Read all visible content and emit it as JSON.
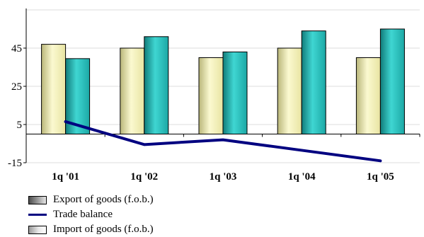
{
  "chart_data": {
    "type": "bar",
    "categories": [
      "1q '01",
      "1q '02",
      "1q '03",
      "1q '04",
      "1q '05"
    ],
    "series": [
      {
        "name": "Import of goods (f.o.b.)",
        "type": "bar",
        "color": "#f4f1b8",
        "values": [
          47,
          45,
          40,
          45,
          40
        ]
      },
      {
        "name": "Export of goods (f.o.b.)",
        "type": "bar",
        "color": "#2ec4c0",
        "values": [
          39.5,
          51,
          43,
          54,
          55
        ]
      },
      {
        "name": "Trade balance",
        "type": "line",
        "color": "#000080",
        "values": [
          6.5,
          -5.5,
          -3,
          -8.5,
          -14
        ]
      }
    ],
    "yticks": [
      -15,
      5,
      25,
      45
    ],
    "ylim": [
      -15,
      65
    ],
    "grid": true,
    "legend_position": "bottom-left"
  },
  "legend": {
    "export_label": "Export of goods (f.o.b.)",
    "trade_label": "Trade balance",
    "import_label": "Import of goods (f.o.b.)"
  }
}
